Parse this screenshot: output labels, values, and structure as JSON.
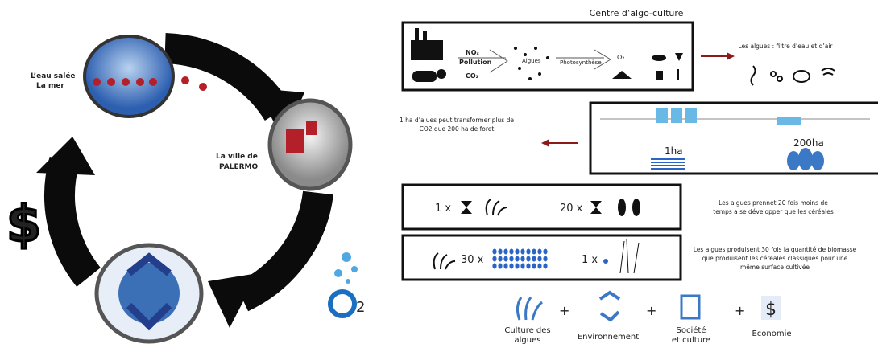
{
  "cycle": {
    "sea": [
      "L’eau salée",
      "La mer"
    ],
    "city": [
      "La ville de",
      "PALERMO"
    ],
    "dollar": "$",
    "o2": "2"
  },
  "title": "Centre d’algo-culture",
  "process": {
    "nox": "NOₓ",
    "pollution": "Pollution",
    "co2": "CO₂",
    "algues": "Algues",
    "photosynthese": "Photosynthèse",
    "o2": "O₂"
  },
  "filter_caption": "Les algues : filtre d’eau et d’air",
  "area": {
    "caption": [
      "1 ha d’alues peut transformer plus de",
      "CO2 que 200 ha de foret"
    ],
    "small": "1ha",
    "large": "200ha"
  },
  "growth": {
    "algae": "1 x",
    "cereal": "20 x",
    "caption": [
      "Les algues prennet 20 fois moins de",
      "temps a se développer que les céréales"
    ]
  },
  "biomass": {
    "algae": "30 x",
    "cereal": "1 x",
    "caption": [
      "Les algues produisent 30 fois la quantité de biomasse",
      "que produisent les céréales classiques pour une",
      "même surface cultivée"
    ]
  },
  "pillars": [
    {
      "label": [
        "Culture des",
        "algues"
      ]
    },
    {
      "label": [
        "Environnement"
      ]
    },
    {
      "label": [
        "Société",
        "et culture"
      ]
    },
    {
      "label": [
        "Economie"
      ]
    }
  ],
  "plus": [
    "+",
    "+",
    "+"
  ],
  "economy_icon": "$"
}
